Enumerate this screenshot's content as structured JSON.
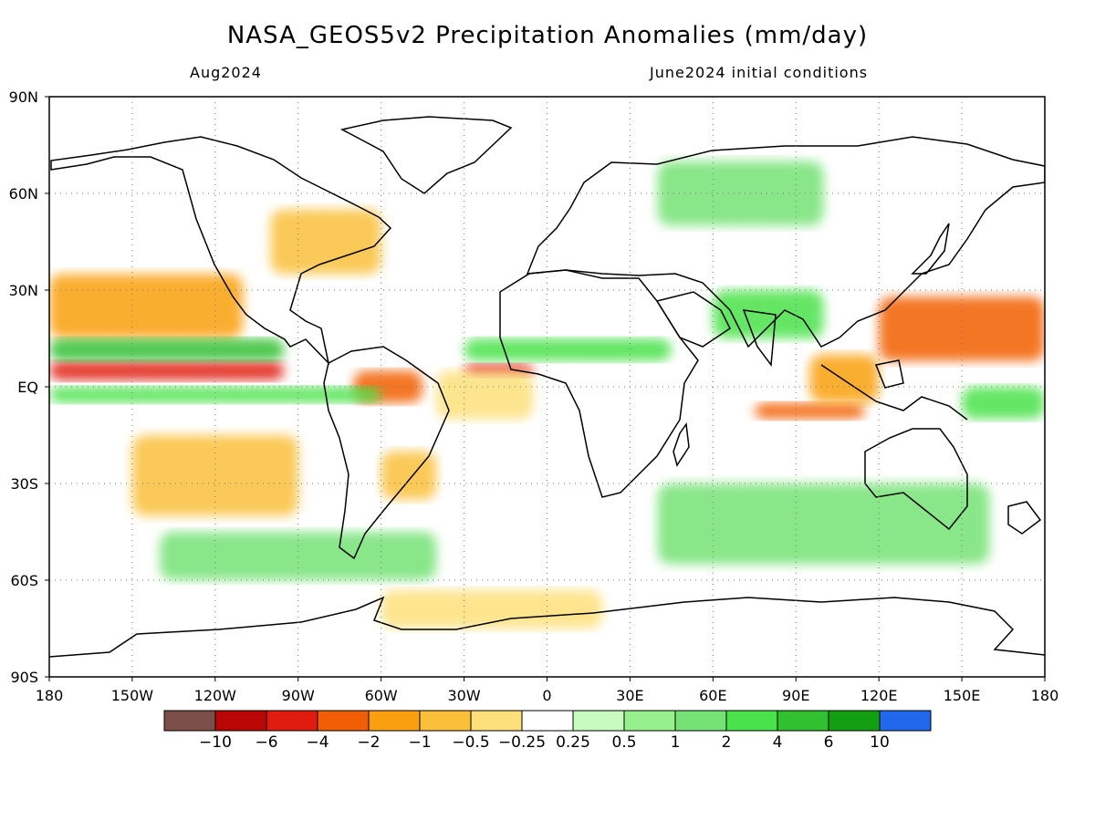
{
  "header": {
    "title": "NASA_GEOS5v2 Precipitation Anomalies (mm/day)",
    "valid_month": "Aug2024",
    "initial_conditions": "June2024 initial conditions"
  },
  "map": {
    "projection": "cylindrical equidistant",
    "lon_range": [
      -180,
      180
    ],
    "lat_range": [
      -90,
      90
    ],
    "grid": "dotted",
    "lon_ticks": [
      {
        "value": -180,
        "label": "180"
      },
      {
        "value": -150,
        "label": "150W"
      },
      {
        "value": -120,
        "label": "120W"
      },
      {
        "value": -90,
        "label": "90W"
      },
      {
        "value": -60,
        "label": "60W"
      },
      {
        "value": -30,
        "label": "30W"
      },
      {
        "value": 0,
        "label": "0"
      },
      {
        "value": 30,
        "label": "30E"
      },
      {
        "value": 60,
        "label": "60E"
      },
      {
        "value": 90,
        "label": "90E"
      },
      {
        "value": 120,
        "label": "120E"
      },
      {
        "value": 150,
        "label": "150E"
      },
      {
        "value": 180,
        "label": "180"
      }
    ],
    "lat_ticks": [
      {
        "value": 90,
        "label": "90N"
      },
      {
        "value": 60,
        "label": "60N"
      },
      {
        "value": 30,
        "label": "30N"
      },
      {
        "value": 0,
        "label": "EQ"
      },
      {
        "value": -30,
        "label": "30S"
      },
      {
        "value": -60,
        "label": "60S"
      },
      {
        "value": -90,
        "label": "90S"
      }
    ],
    "anomaly_regions": [
      {
        "lon": [
          -180,
          -95
        ],
        "lat": [
          2,
          8
        ],
        "level": -6,
        "desc": "dry band ITCZ east Pacific"
      },
      {
        "lon": [
          -30,
          -5
        ],
        "lat": [
          3,
          7
        ],
        "level": -6
      },
      {
        "lon": [
          -70,
          -45
        ],
        "lat": [
          -5,
          5
        ],
        "level": -4
      },
      {
        "lon": [
          -180,
          -110
        ],
        "lat": [
          15,
          35
        ],
        "level": -2
      },
      {
        "lon": [
          -150,
          -90
        ],
        "lat": [
          -40,
          -15
        ],
        "level": -1
      },
      {
        "lon": [
          -60,
          -40
        ],
        "lat": [
          -35,
          -20
        ],
        "level": -1
      },
      {
        "lon": [
          120,
          180
        ],
        "lat": [
          8,
          28
        ],
        "level": -4
      },
      {
        "lon": [
          75,
          115
        ],
        "lat": [
          -10,
          -5
        ],
        "level": -4
      },
      {
        "lon": [
          95,
          120
        ],
        "lat": [
          -5,
          10
        ],
        "level": -2
      },
      {
        "lon": [
          -180,
          -95
        ],
        "lat": [
          8,
          15
        ],
        "level": 4
      },
      {
        "lon": [
          -180,
          -60
        ],
        "lat": [
          -5,
          0
        ],
        "level": 2
      },
      {
        "lon": [
          -30,
          45
        ],
        "lat": [
          8,
          15
        ],
        "level": 2
      },
      {
        "lon": [
          60,
          100
        ],
        "lat": [
          15,
          30
        ],
        "level": 2
      },
      {
        "lon": [
          150,
          180
        ],
        "lat": [
          -10,
          0
        ],
        "level": 2
      },
      {
        "lon": [
          -140,
          -40
        ],
        "lat": [
          -60,
          -45
        ],
        "level": 1
      },
      {
        "lon": [
          40,
          160
        ],
        "lat": [
          -55,
          -30
        ],
        "level": 1
      },
      {
        "lon": [
          -100,
          -60
        ],
        "lat": [
          35,
          55
        ],
        "level": -1
      },
      {
        "lon": [
          -40,
          -5
        ],
        "lat": [
          -10,
          5
        ],
        "level": -0.5
      },
      {
        "lon": [
          -60,
          20
        ],
        "lat": [
          -75,
          -63
        ],
        "level": -0.5
      },
      {
        "lon": [
          40,
          100
        ],
        "lat": [
          50,
          70
        ],
        "level": 1
      }
    ]
  },
  "colorbar": {
    "colors": [
      "#7c5048",
      "#bb0606",
      "#e01c10",
      "#f25e06",
      "#faa010",
      "#fac03a",
      "#fde07a",
      "#ffffff",
      "#c8fbc0",
      "#96f08c",
      "#74e274",
      "#4ae24a",
      "#30c030",
      "#12a012",
      "#2068ec"
    ],
    "labels": [
      "-10",
      "-6",
      "-4",
      "-2",
      "-1",
      "-0.5",
      "-0.25",
      "0.25",
      "0.5",
      "1",
      "2",
      "4",
      "6",
      "10"
    ],
    "thresholds": [
      -10,
      -6,
      -4,
      -2,
      -1,
      -0.5,
      -0.25,
      0.25,
      0.5,
      1,
      2,
      4,
      6,
      10
    ]
  }
}
